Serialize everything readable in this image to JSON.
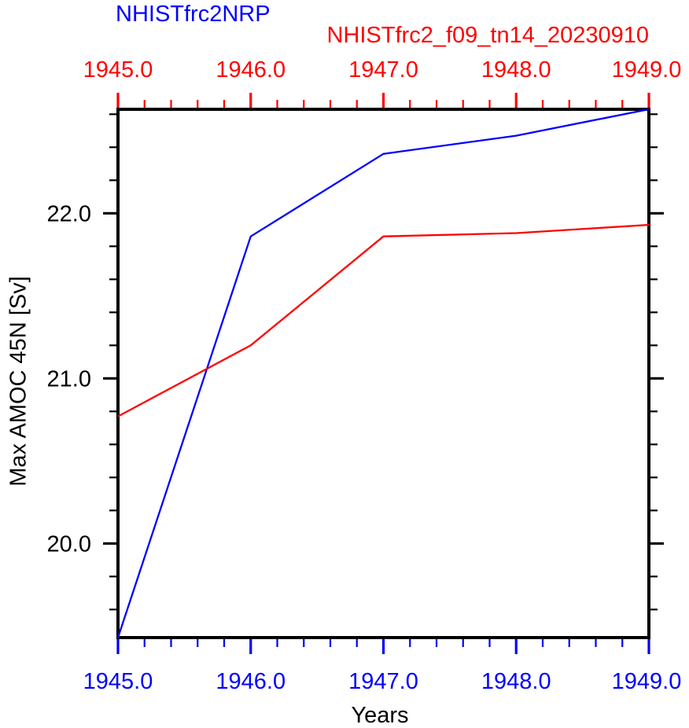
{
  "page": {
    "background_color": "#ffffff",
    "frame_color": "#000000"
  },
  "chart_data": {
    "type": "line",
    "title_left": "NHISTfrc2NRP",
    "title_right": "NHISTfrc2_f09_tn14_20230910",
    "xlabel": "Years",
    "ylabel": "Max AMOC 45N [Sv]",
    "x": [
      1945,
      1946,
      1947,
      1948,
      1949
    ],
    "series": [
      {
        "name": "NHISTfrc2NRP",
        "color": "#0000ff",
        "values": [
          19.43,
          21.86,
          22.36,
          22.47,
          22.63
        ]
      },
      {
        "name": "NHISTfrc2_f09_tn14_20230910",
        "color": "#ff0000",
        "values": [
          20.77,
          21.2,
          21.86,
          21.88,
          21.93
        ]
      }
    ],
    "xlim": [
      1945,
      1949
    ],
    "ylim": [
      19.43,
      22.63
    ],
    "x_major_ticks": [
      1945,
      1946,
      1947,
      1948,
      1949
    ],
    "x_tick_labels": [
      "1945.0",
      "1946.0",
      "1947.0",
      "1948.0",
      "1949.0"
    ],
    "y_major_ticks": [
      20,
      21,
      22
    ],
    "y_tick_labels": [
      "20.0",
      "21.0",
      "22.0"
    ],
    "x_minor_step": 0.2,
    "y_minor_step": 0.2,
    "grid": false,
    "axis_styles": {
      "top_tick_color": "#ff0000",
      "top_label_color": "#ff0000",
      "bottom_tick_color": "#0000ff",
      "bottom_label_color": "#0000ff",
      "left_tick_color": "#000000",
      "left_label_color": "#000000",
      "right_tick_color": "#000000"
    }
  }
}
